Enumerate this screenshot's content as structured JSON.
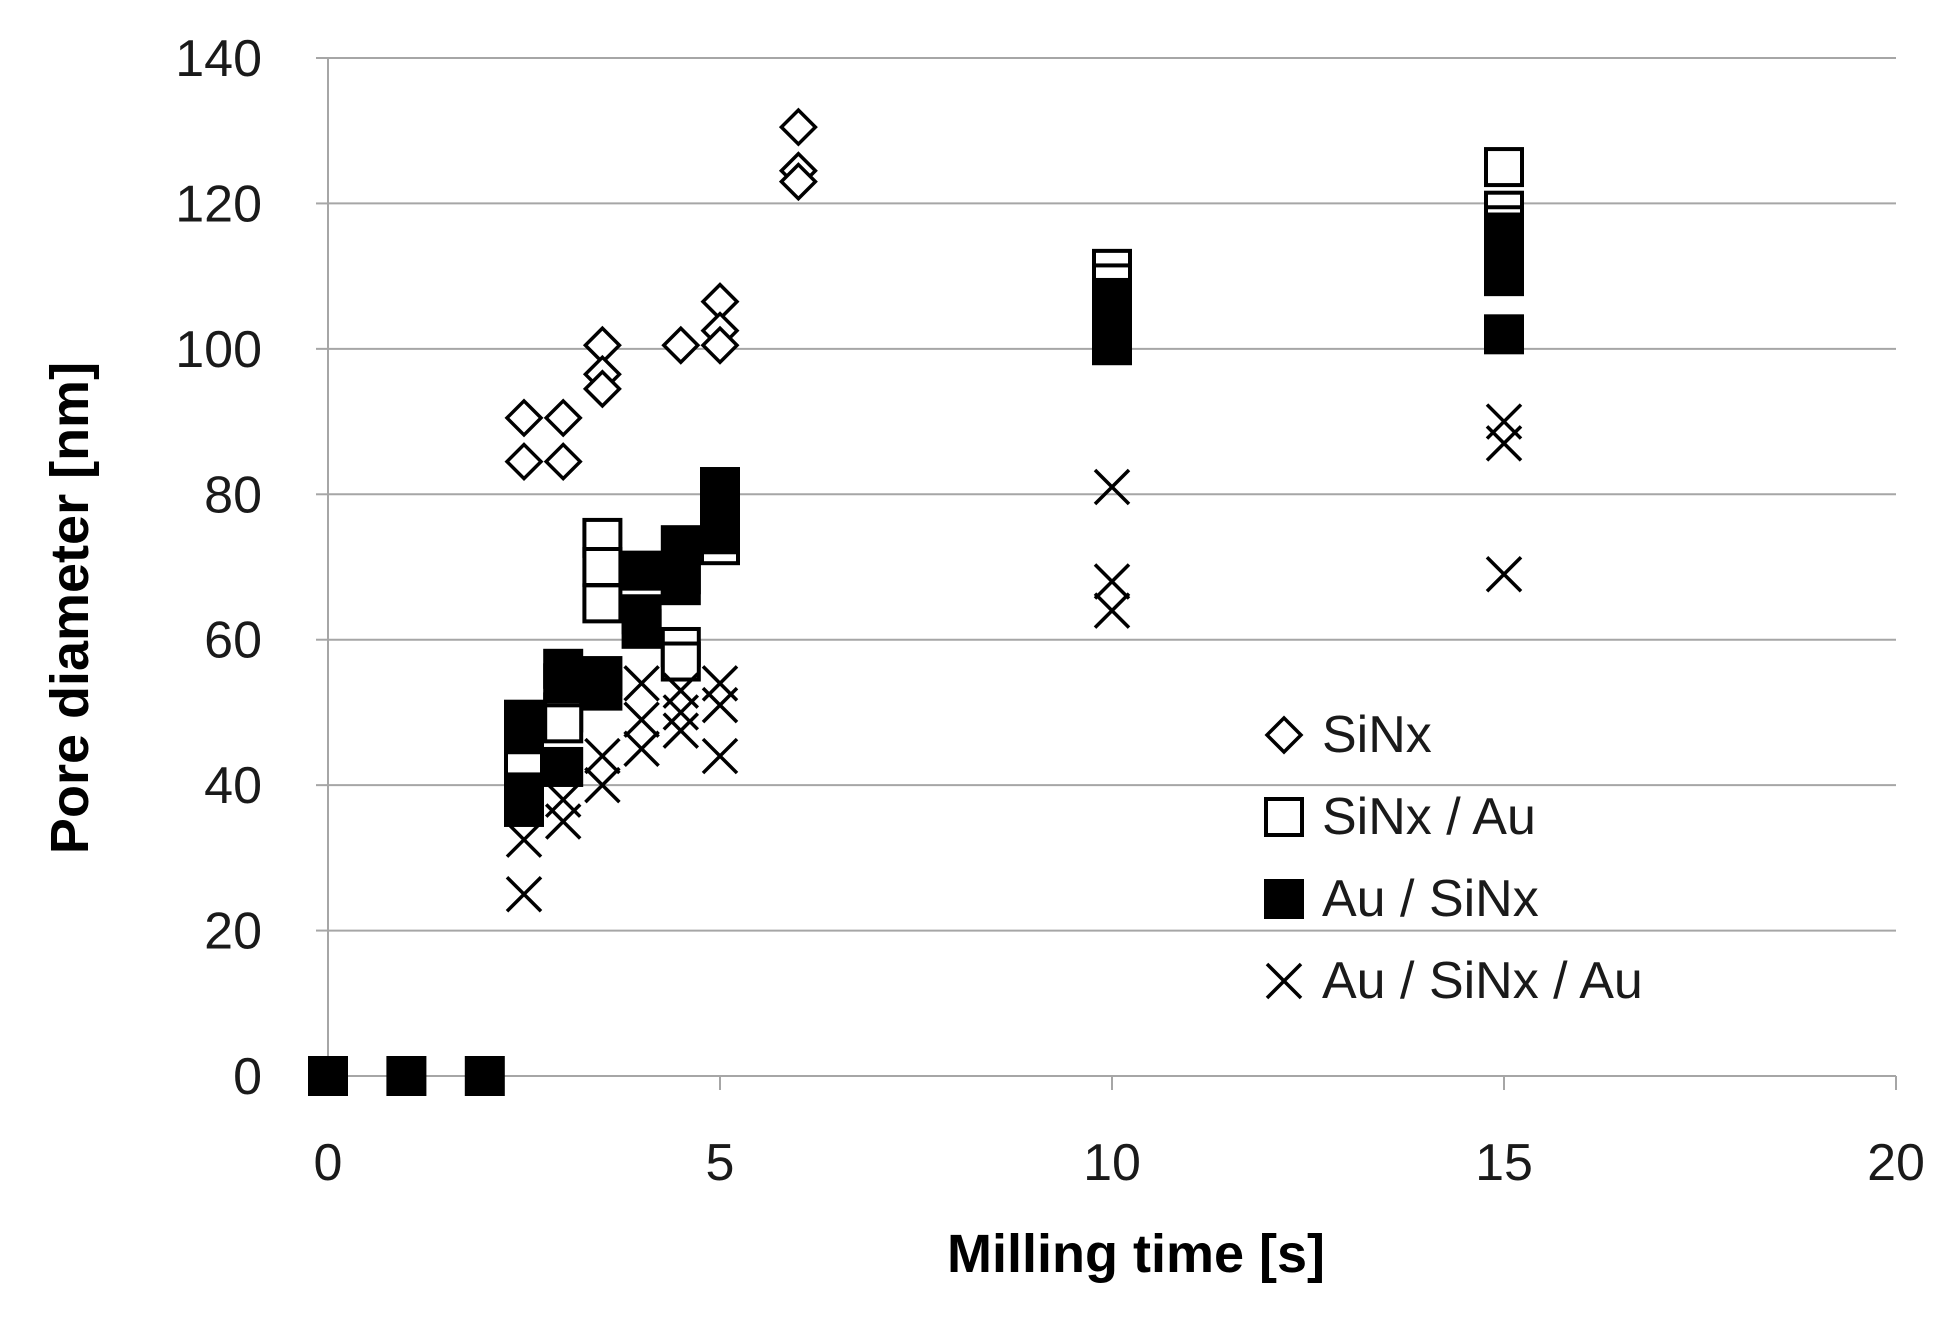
{
  "chart_data": {
    "type": "scatter",
    "title": "",
    "xlabel": "Milling time [s]",
    "ylabel": "Pore diameter [nm]",
    "xlim": [
      0,
      20
    ],
    "ylim": [
      0,
      140
    ],
    "xticks": [
      0,
      5,
      10,
      15,
      20
    ],
    "yticks": [
      0,
      20,
      40,
      60,
      80,
      100,
      120,
      140
    ],
    "grid": "horizontal",
    "legend_position": "right-middle",
    "colors": {
      "grid": "#a6a6a6",
      "marker": "#000000",
      "background": "#ffffff"
    },
    "series": [
      {
        "name": "SiNx",
        "marker": "diamond-open",
        "points": [
          [
            2.5,
            90.5
          ],
          [
            2.5,
            84.5
          ],
          [
            3,
            90.5
          ],
          [
            3,
            84.5
          ],
          [
            3.5,
            100.5
          ],
          [
            3.5,
            96.5
          ],
          [
            3.5,
            94.5
          ],
          [
            4.5,
            100.5
          ],
          [
            5,
            106.5
          ],
          [
            5,
            102.5
          ],
          [
            5,
            100.5
          ],
          [
            6,
            130.5
          ],
          [
            6,
            124.5
          ],
          [
            6,
            123
          ]
        ]
      },
      {
        "name": "SiNx / Au",
        "marker": "square-open",
        "points": [
          [
            2.5,
            45
          ],
          [
            2.5,
            43
          ],
          [
            3,
            50
          ],
          [
            3,
            48.5
          ],
          [
            3.5,
            74
          ],
          [
            3.5,
            70
          ],
          [
            3.5,
            65
          ],
          [
            4.5,
            59
          ],
          [
            4.5,
            57
          ],
          [
            5,
            74
          ],
          [
            5,
            73
          ],
          [
            10,
            111
          ],
          [
            10,
            109
          ],
          [
            15,
            125
          ],
          [
            15,
            119
          ],
          [
            15,
            117
          ]
        ]
      },
      {
        "name": "Au / SiNx",
        "marker": "square-filled",
        "points": [
          [
            0,
            0
          ],
          [
            1,
            0
          ],
          [
            2,
            0
          ],
          [
            2.5,
            49
          ],
          [
            2.5,
            47
          ],
          [
            2.5,
            39
          ],
          [
            2.5,
            37
          ],
          [
            3,
            56
          ],
          [
            3,
            54
          ],
          [
            3,
            42.5
          ],
          [
            3.5,
            55
          ],
          [
            3.5,
            53
          ],
          [
            4,
            69.5
          ],
          [
            4,
            63.5
          ],
          [
            4,
            61.5
          ],
          [
            4.5,
            73
          ],
          [
            4.5,
            69
          ],
          [
            4.5,
            67.5
          ],
          [
            5,
            81
          ],
          [
            5,
            78
          ],
          [
            5,
            74.5
          ],
          [
            10,
            107
          ],
          [
            10,
            103
          ],
          [
            10,
            100.5
          ],
          [
            15,
            116
          ],
          [
            15,
            112
          ],
          [
            15,
            110
          ],
          [
            15,
            102
          ]
        ]
      },
      {
        "name": "Au / SiNx / Au",
        "marker": "x",
        "points": [
          [
            2.5,
            25
          ],
          [
            2.5,
            32.5
          ],
          [
            3,
            35
          ],
          [
            3,
            38
          ],
          [
            3.5,
            40
          ],
          [
            3.5,
            44
          ],
          [
            4,
            45
          ],
          [
            4,
            49
          ],
          [
            4,
            54
          ],
          [
            4.5,
            47.5
          ],
          [
            4.5,
            50
          ],
          [
            4.5,
            53
          ],
          [
            5,
            44
          ],
          [
            5,
            51
          ],
          [
            5,
            54
          ],
          [
            10,
            81
          ],
          [
            10,
            68
          ],
          [
            10,
            64
          ],
          [
            15,
            90
          ],
          [
            15,
            87
          ],
          [
            15,
            69
          ]
        ]
      }
    ]
  }
}
